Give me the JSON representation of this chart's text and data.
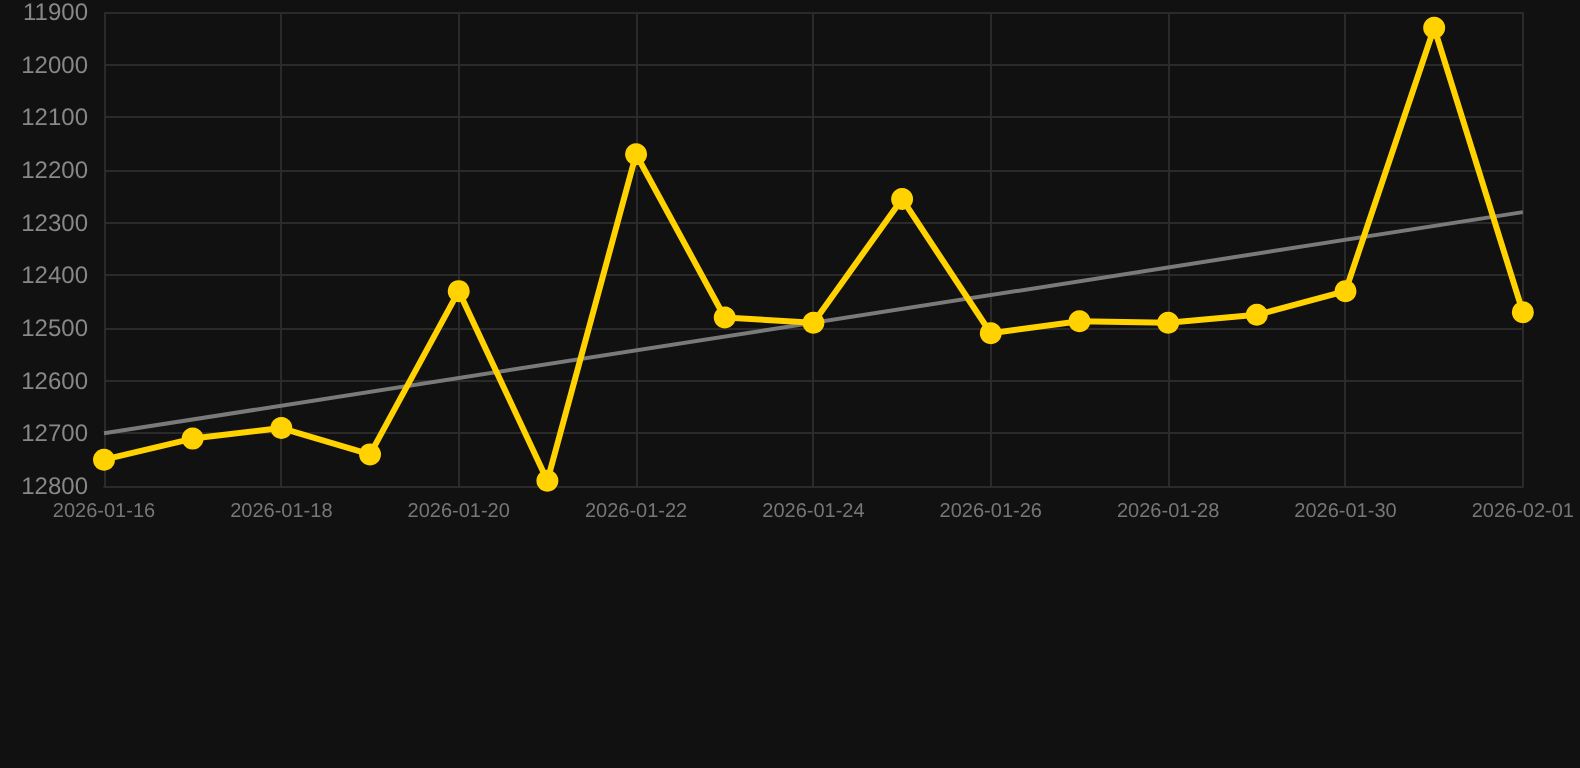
{
  "chart_data": {
    "type": "line",
    "x": [
      "2026-01-16",
      "2026-01-17",
      "2026-01-18",
      "2026-01-19",
      "2026-01-20",
      "2026-01-21",
      "2026-01-22",
      "2026-01-23",
      "2026-01-24",
      "2026-01-25",
      "2026-01-26",
      "2026-01-27",
      "2026-01-28",
      "2026-01-29",
      "2026-01-30",
      "2026-01-31",
      "2026-02-01"
    ],
    "series": [
      {
        "color": "#ffd200",
        "marker": "circle",
        "values": [
          12750,
          12710,
          12690,
          12740,
          12430,
          12790,
          12170,
          12480,
          12490,
          12255,
          12510,
          12487,
          12490,
          12475,
          12430,
          11930,
          12470
        ]
      },
      {
        "type": "line",
        "color": "#7a7a7a",
        "marker": "none",
        "x": [
          "2026-01-16",
          "2026-02-01"
        ],
        "values": [
          12700,
          12280
        ]
      }
    ],
    "xlim": [
      "2026-01-16",
      "2026-02-01"
    ],
    "xticks": [
      "2026-01-16",
      "2026-01-18",
      "2026-01-20",
      "2026-01-22",
      "2026-01-24",
      "2026-01-26",
      "2026-01-28",
      "2026-01-30",
      "2026-02-01"
    ],
    "ylim": [
      12800,
      11900
    ],
    "yticks": [
      11900,
      12000,
      12100,
      12200,
      12300,
      12400,
      12500,
      12600,
      12700,
      12800
    ],
    "grid": true
  }
}
